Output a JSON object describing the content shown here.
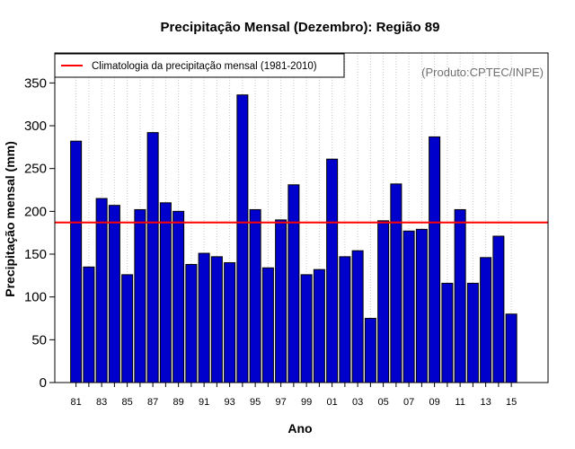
{
  "chart_data": {
    "type": "bar",
    "title": "Precipitação Mensal (Dezembro): Região 89",
    "xlabel": "Ano",
    "ylabel": "Precipitação mensal (mm)",
    "source": "(Produto:CPTEC/INPE)",
    "ylim": [
      0,
      385
    ],
    "yticks": [
      0,
      50,
      100,
      150,
      200,
      250,
      300,
      350
    ],
    "grid": "vertical dotted",
    "legend_position": "top-left",
    "categories": [
      "81",
      "82",
      "83",
      "84",
      "85",
      "86",
      "87",
      "88",
      "89",
      "90",
      "91",
      "92",
      "93",
      "94",
      "95",
      "96",
      "97",
      "98",
      "99",
      "00",
      "01",
      "02",
      "03",
      "04",
      "05",
      "06",
      "07",
      "08",
      "09",
      "10",
      "11",
      "12",
      "13",
      "14",
      "15"
    ],
    "xtick_labels": [
      "81",
      "83",
      "85",
      "87",
      "89",
      "91",
      "93",
      "95",
      "97",
      "99",
      "01",
      "03",
      "05",
      "07",
      "09",
      "11",
      "13",
      "15"
    ],
    "series": [
      {
        "name": "Precipitação mensal",
        "color": "#0000cd",
        "values": [
          282,
          135,
          215,
          207,
          126,
          202,
          292,
          210,
          200,
          138,
          151,
          147,
          140,
          336,
          202,
          134,
          190,
          231,
          126,
          132,
          261,
          147,
          154,
          75,
          189,
          232,
          177,
          179,
          287,
          116,
          202,
          116,
          146,
          171,
          80
        ]
      }
    ],
    "reference_line": {
      "label": "Climatologia da precipitação mensal (1981-2010)",
      "value": 187,
      "color": "#ff0000"
    }
  }
}
